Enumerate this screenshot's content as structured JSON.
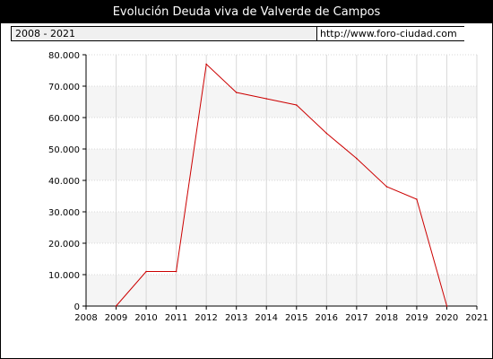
{
  "title": "Evolución Deuda viva de Valverde de Campos",
  "period_label": "2008 - 2021",
  "source_url": "http://www.foro-ciudad.com",
  "colors": {
    "line": "#cc0000",
    "band": "#f5f5f5",
    "grid": "#d8d8d8"
  },
  "chart_data": {
    "type": "line",
    "title": "Evolución Deuda viva de Valverde de Campos",
    "xlabel": "",
    "ylabel": "",
    "xlim": [
      2008,
      2021
    ],
    "ylim": [
      0,
      80000
    ],
    "x_ticks": [
      2008,
      2009,
      2010,
      2011,
      2012,
      2013,
      2014,
      2015,
      2016,
      2017,
      2018,
      2019,
      2020,
      2021
    ],
    "y_ticks": [
      0,
      10000,
      20000,
      30000,
      40000,
      50000,
      60000,
      70000,
      80000
    ],
    "y_tick_labels": [
      "0",
      "10.000",
      "20.000",
      "30.000",
      "40.000",
      "50.000",
      "60.000",
      "70.000",
      "80.000"
    ],
    "grid": true,
    "series": [
      {
        "x": [
          2009,
          2010,
          2011,
          2012,
          2013,
          2014,
          2015,
          2016,
          2017,
          2018,
          2019,
          2020
        ],
        "values": [
          0,
          11000,
          11000,
          77000,
          68000,
          66000,
          64000,
          55000,
          47000,
          38000,
          34000,
          0
        ]
      }
    ]
  }
}
